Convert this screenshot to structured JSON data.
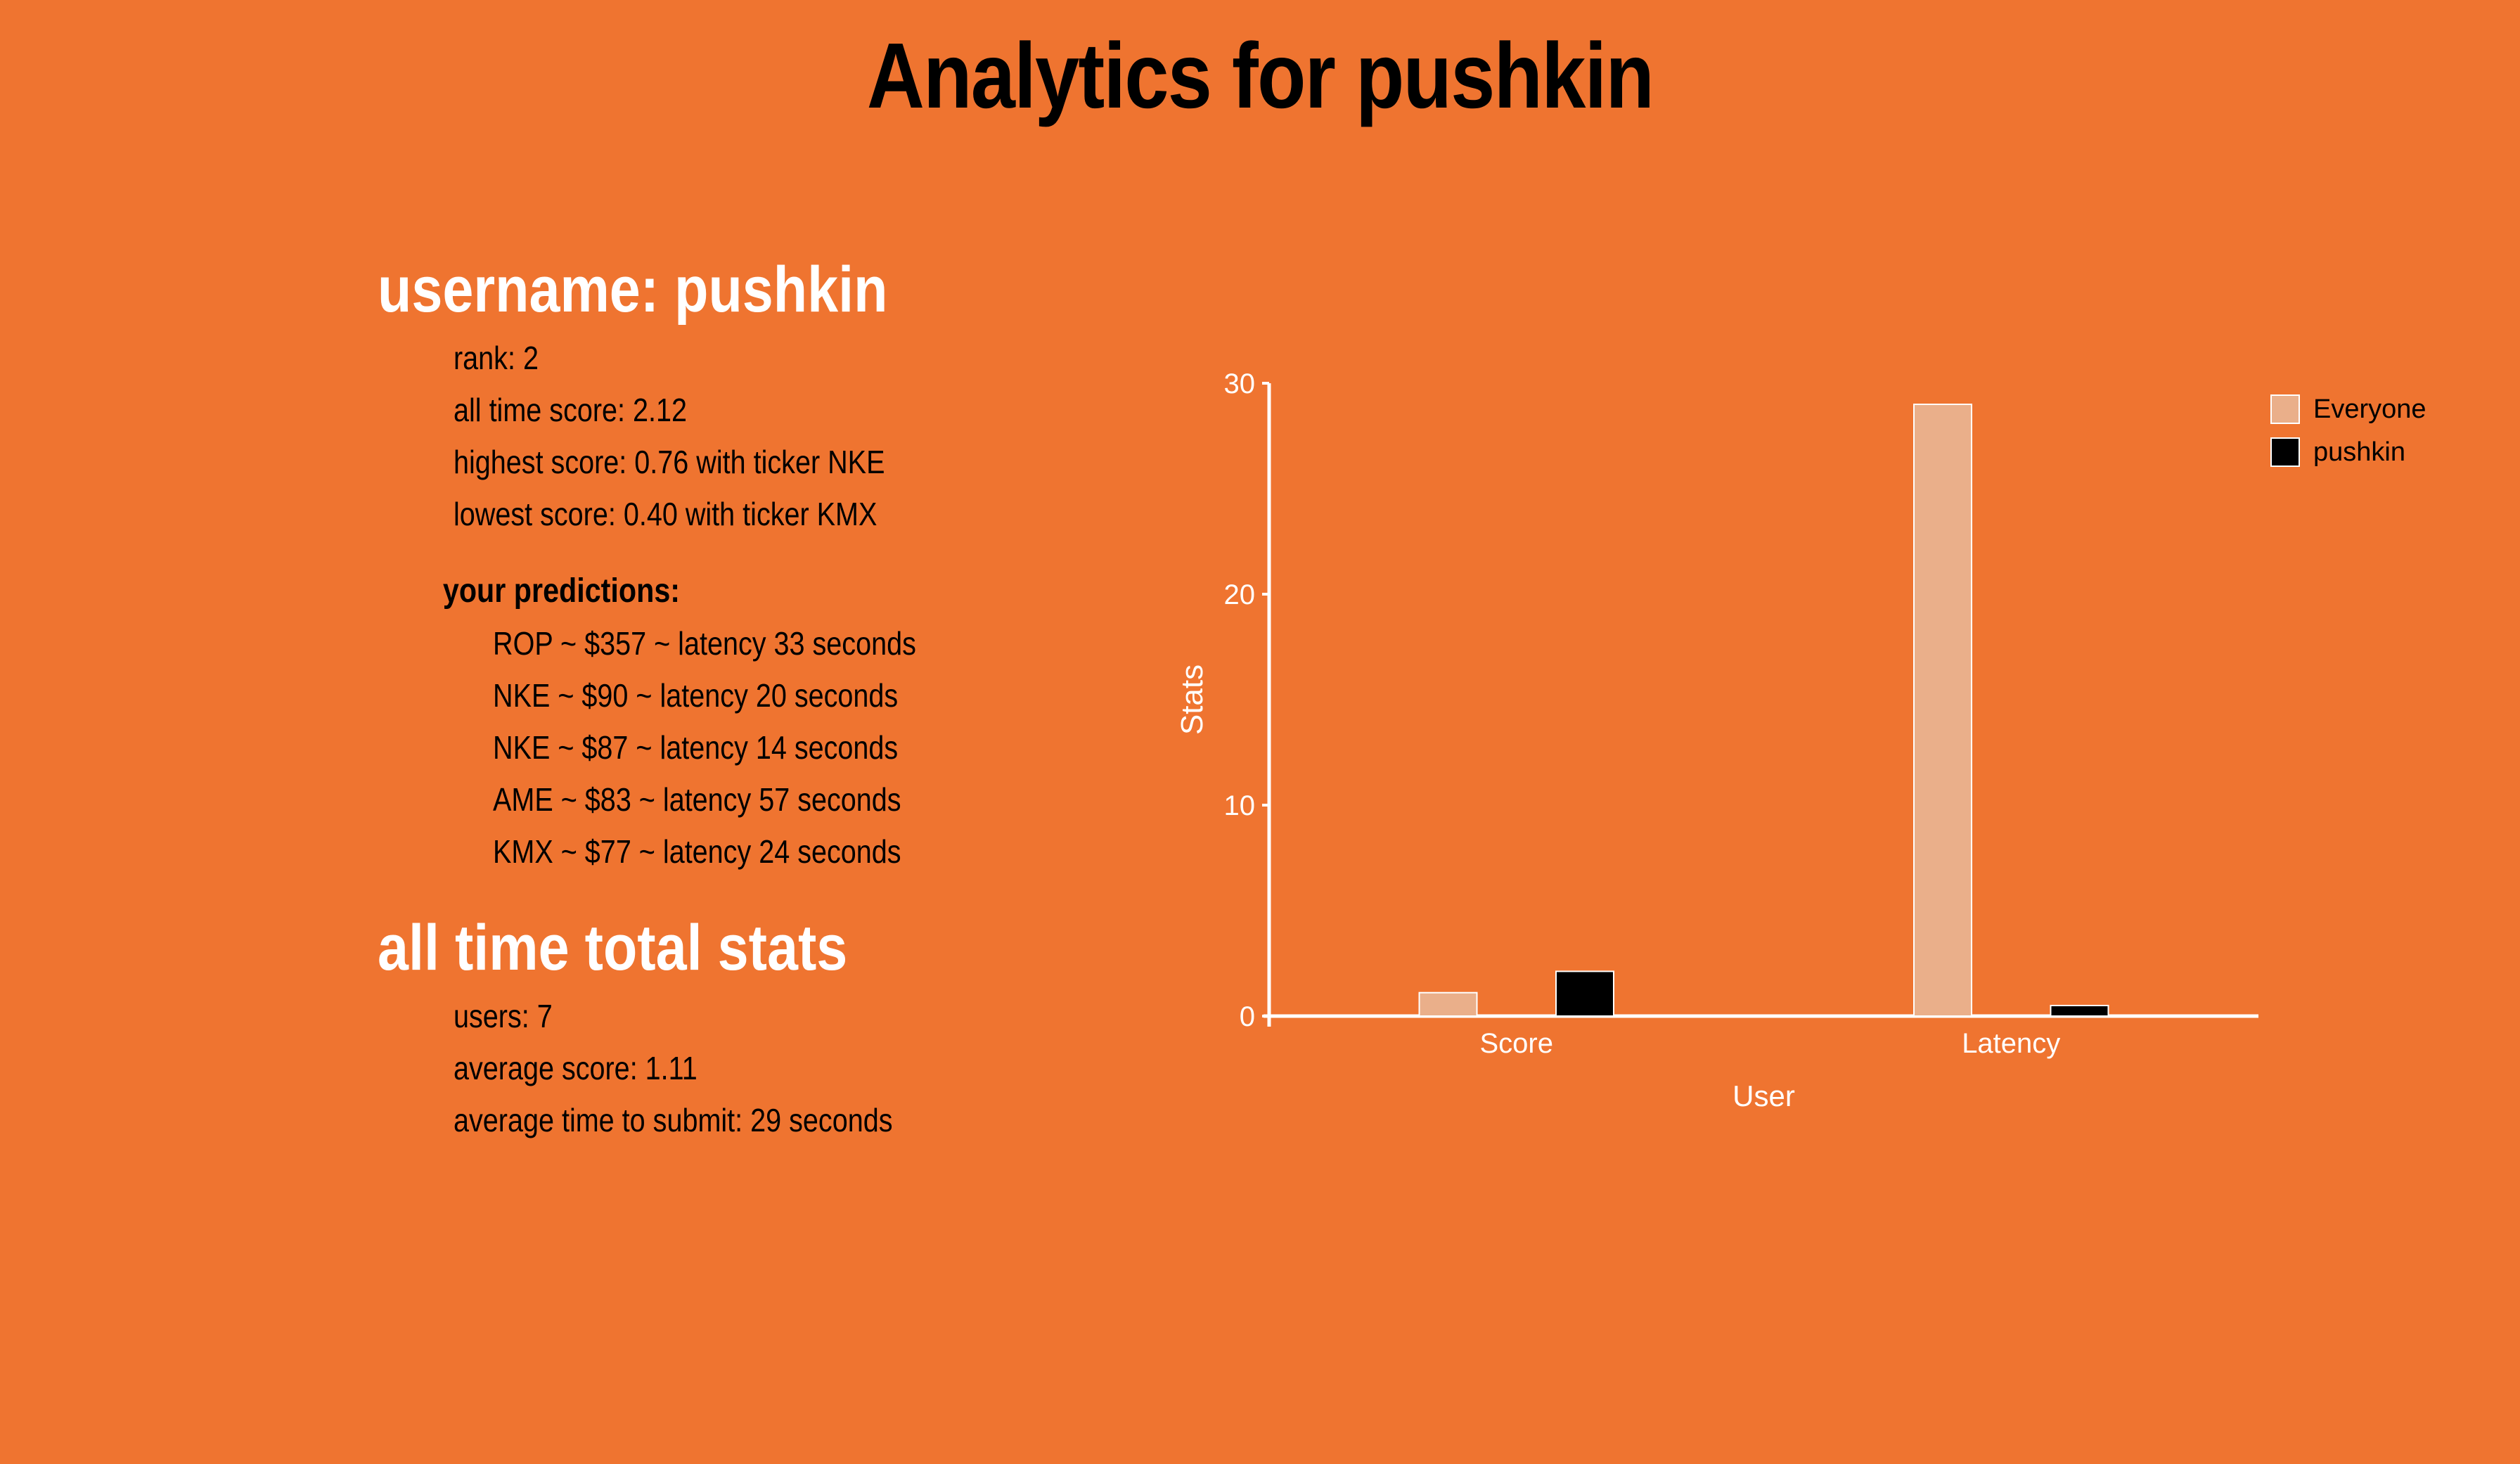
{
  "title": "Analytics for pushkin",
  "user": {
    "heading": "username: pushkin",
    "rank": "rank: 2",
    "all_time_score": "all time score: 2.12",
    "highest_score": "highest score: 0.76 with ticker NKE",
    "lowest_score": "lowest score: 0.40 with ticker KMX"
  },
  "predictions": {
    "heading": "your predictions:",
    "items": [
      "ROP ~ $357 ~ latency 33 seconds",
      "NKE ~ $90 ~ latency 20 seconds",
      "NKE ~ $87 ~ latency 14 seconds",
      "AME ~ $83 ~ latency 57 seconds",
      "KMX ~ $77 ~ latency 24 seconds"
    ]
  },
  "totals": {
    "heading": "all time total stats",
    "users": "users: 7",
    "average_score": "average score: 1.11",
    "average_time": "average time to submit: 29 seconds"
  },
  "colors": {
    "background": "#EF7430",
    "everyone": "#EAAF8A",
    "user": "#000000",
    "axis": "#FFFFFF"
  },
  "chart_data": {
    "type": "bar",
    "categories": [
      "Score",
      "Latency"
    ],
    "series": [
      {
        "name": "Everyone",
        "values": [
          1.11,
          29
        ],
        "color": "#EAAF8A"
      },
      {
        "name": "pushkin",
        "values": [
          2.12,
          0.5
        ],
        "color": "#000000"
      }
    ],
    "xlabel": "User",
    "ylabel": "Stats",
    "ylim": [
      0,
      30
    ],
    "yticks": [
      "0",
      "10",
      "20",
      "30"
    ],
    "legend_position": "top-right",
    "grid": false
  }
}
